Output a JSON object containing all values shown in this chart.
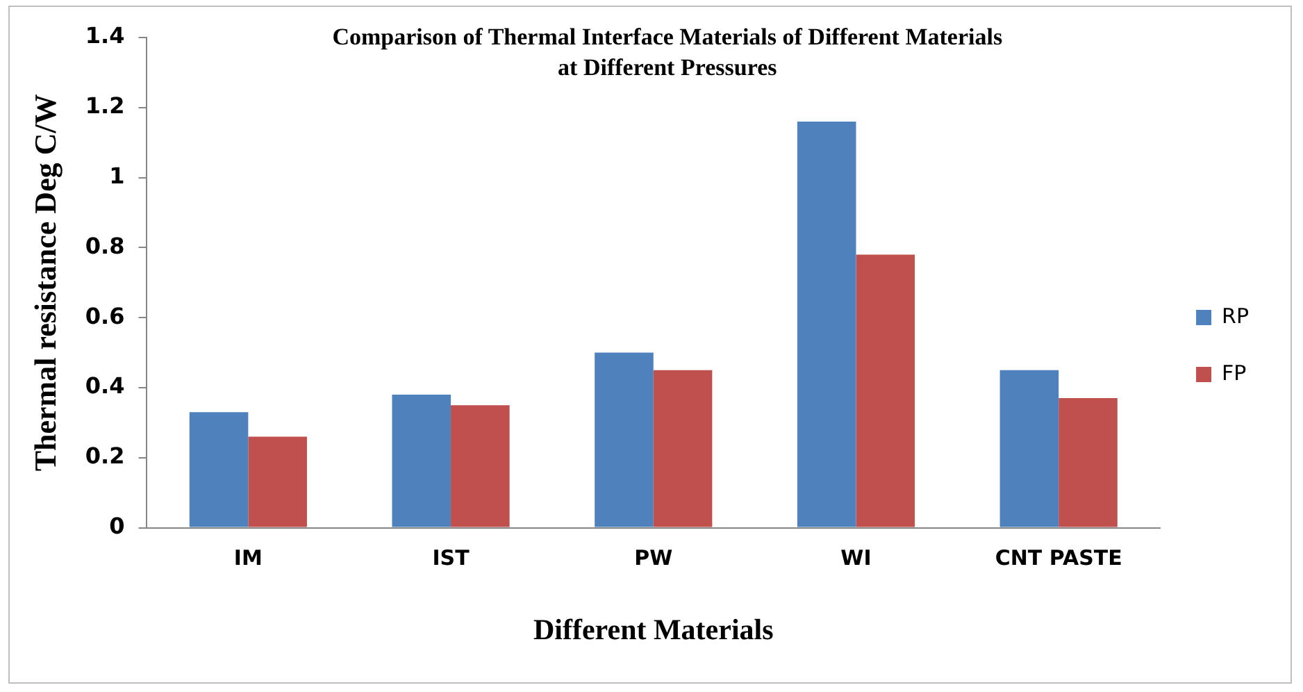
{
  "chart_data": {
    "type": "bar",
    "title": "Comparison of Thermal Interface Materials of Different Materials\nat Different Pressures",
    "xlabel": "Different Materials",
    "ylabel": "Thermal resistance Deg C/W",
    "categories": [
      "IM",
      "IST",
      "PW",
      "WI",
      "CNT PASTE"
    ],
    "series": [
      {
        "name": "RP",
        "color": "#4f81bd",
        "values": [
          0.33,
          0.38,
          0.5,
          1.16,
          0.45
        ]
      },
      {
        "name": "FP",
        "color": "#c0504d",
        "values": [
          0.26,
          0.35,
          0.45,
          0.78,
          0.37
        ]
      }
    ],
    "ylim": [
      0,
      1.4
    ],
    "yticks": [
      0,
      0.2,
      0.4,
      0.6,
      0.8,
      1,
      1.2,
      1.4
    ],
    "grid": false,
    "legend": "right"
  }
}
